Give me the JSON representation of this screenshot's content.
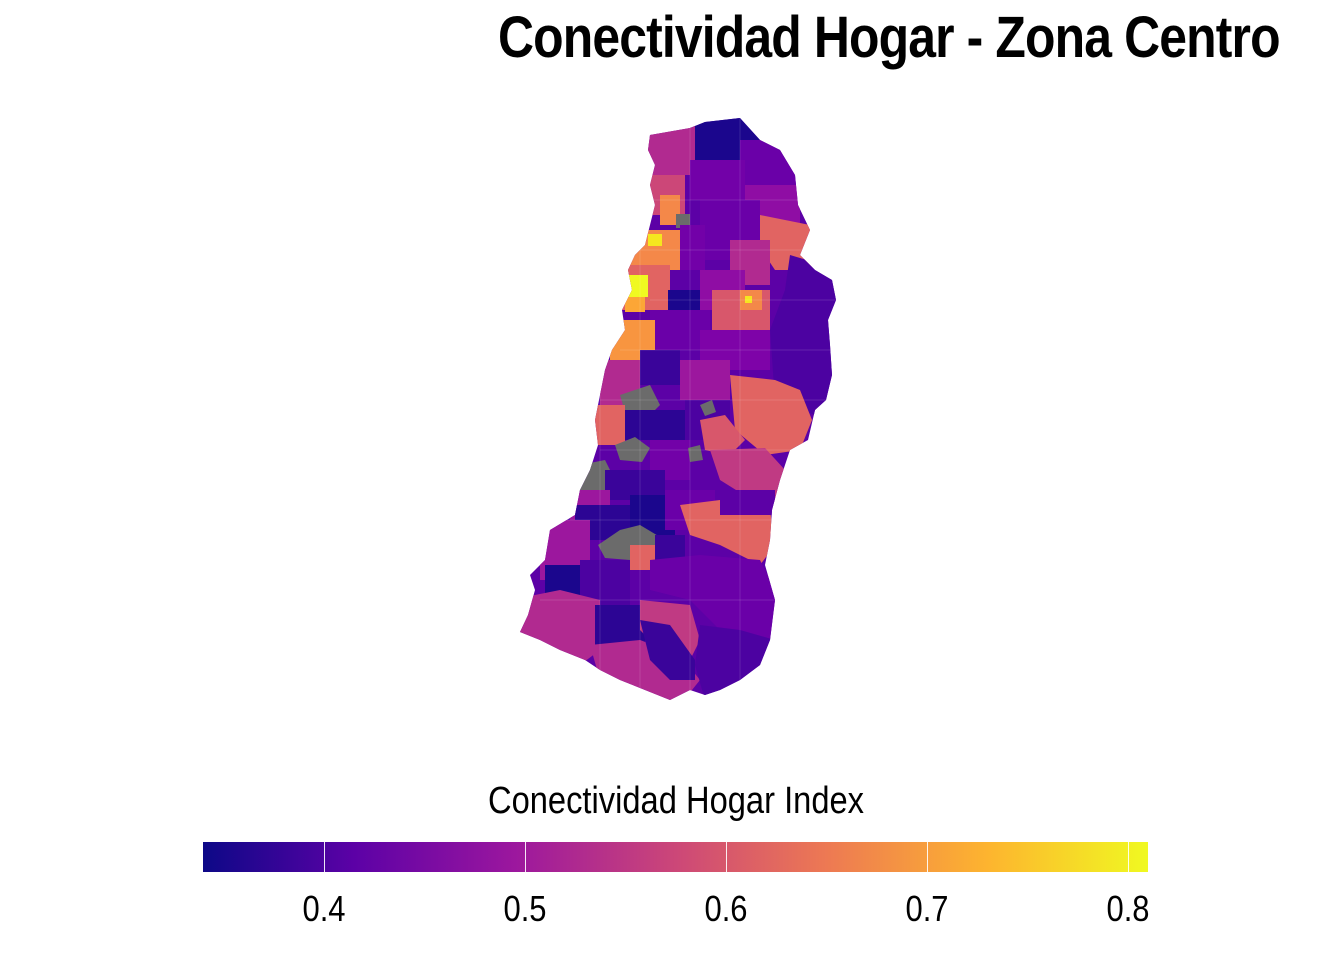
{
  "title": "Conectividad Hogar - Zona Centro",
  "legend": {
    "title": "Conectividad Hogar Index",
    "min": 0.34,
    "max": 0.81,
    "ticks": [
      {
        "value": 0.4,
        "label": "0.4"
      },
      {
        "value": 0.5,
        "label": "0.5"
      },
      {
        "value": 0.6,
        "label": "0.6"
      },
      {
        "value": 0.7,
        "label": "0.7"
      },
      {
        "value": 0.8,
        "label": "0.8"
      }
    ],
    "colormap": "plasma",
    "gradient_colors": [
      "#0d0887",
      "#5c01a6",
      "#9c179e",
      "#cc4778",
      "#ed7953",
      "#fdb42f",
      "#f0f921"
    ]
  },
  "colors": {
    "no_data": "#6b6b6b",
    "background": "#ffffff"
  }
}
